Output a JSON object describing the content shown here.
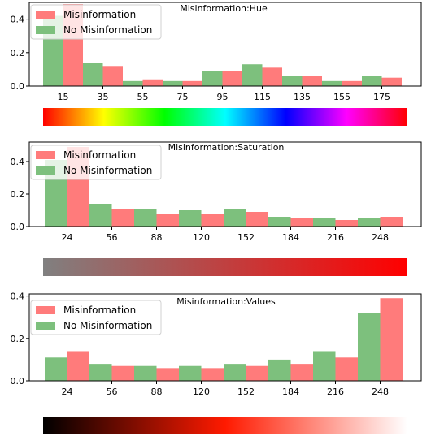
{
  "colors": {
    "misinformation": "#ff7b7b",
    "no_misinformation": "#7dc07d",
    "axis": "#000000"
  },
  "chart_data": [
    {
      "type": "bar",
      "title": "Misinformation:Hue",
      "xticks": [
        "15",
        "35",
        "55",
        "75",
        "95",
        "115",
        "135",
        "155",
        "175"
      ],
      "yticks": [
        "0.0",
        "0.2",
        "0.4"
      ],
      "ylim": [
        0,
        0.5
      ],
      "legend": {
        "placement": "top-left",
        "entries": [
          "Misinformation",
          "No Misinformation"
        ]
      },
      "series": [
        {
          "name": "No Misinformation",
          "color": "#7dc07d",
          "values": [
            0.42,
            0.14,
            0.03,
            0.03,
            0.09,
            0.13,
            0.06,
            0.03,
            0.06
          ]
        },
        {
          "name": "Misinformation",
          "color": "#ff7b7b",
          "values": [
            0.49,
            0.12,
            0.04,
            0.03,
            0.09,
            0.11,
            0.06,
            0.03,
            0.05
          ]
        }
      ],
      "colorbar": {
        "type": "hue",
        "stops": [
          "#ff0000",
          "#ffff00",
          "#00ff00",
          "#00ffff",
          "#0000ff",
          "#ff00ff",
          "#ff0000"
        ]
      }
    },
    {
      "type": "bar",
      "title": "Misinformation:Saturation",
      "xticks": [
        "24",
        "56",
        "88",
        "120",
        "152",
        "184",
        "216",
        "248"
      ],
      "yticks": [
        "0.0",
        "0.2",
        "0.4"
      ],
      "ylim": [
        0,
        0.52
      ],
      "legend": {
        "placement": "top-left",
        "entries": [
          "Misinformation",
          "No Misinformation"
        ]
      },
      "series": [
        {
          "name": "No Misinformation",
          "color": "#7dc07d",
          "values": [
            0.41,
            0.14,
            0.11,
            0.1,
            0.11,
            0.06,
            0.05,
            0.05
          ]
        },
        {
          "name": "Misinformation",
          "color": "#ff7b7b",
          "values": [
            0.49,
            0.11,
            0.08,
            0.08,
            0.09,
            0.05,
            0.04,
            0.06
          ]
        }
      ],
      "colorbar": {
        "type": "saturation",
        "stops": [
          "#808080",
          "#ff0000"
        ]
      }
    },
    {
      "type": "bar",
      "title": "Misinformation:Values",
      "xticks": [
        "24",
        "56",
        "88",
        "120",
        "152",
        "184",
        "216",
        "248"
      ],
      "yticks": [
        "0.0",
        "0.2",
        "0.4"
      ],
      "ylim": [
        0,
        0.41
      ],
      "legend": {
        "placement": "top-left",
        "entries": [
          "Misinformation",
          "No Misinformation"
        ]
      },
      "series": [
        {
          "name": "No Misinformation",
          "color": "#7dc07d",
          "values": [
            0.11,
            0.08,
            0.07,
            0.07,
            0.08,
            0.1,
            0.14,
            0.32
          ]
        },
        {
          "name": "Misinformation",
          "color": "#ff7b7b",
          "values": [
            0.14,
            0.07,
            0.06,
            0.06,
            0.07,
            0.08,
            0.11,
            0.39
          ]
        }
      ],
      "colorbar": {
        "type": "value",
        "stops": [
          "#000000",
          "#ff1a00",
          "#ffffff"
        ]
      }
    }
  ]
}
